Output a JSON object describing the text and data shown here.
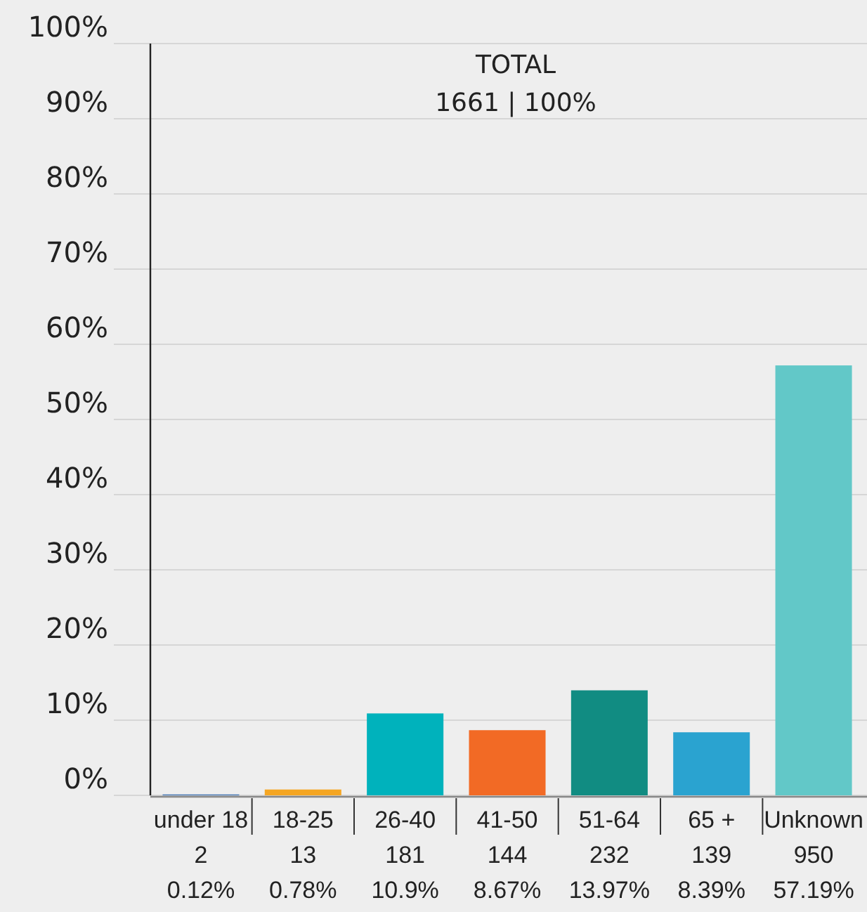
{
  "chart_data": {
    "type": "bar",
    "title": "TOTAL",
    "subtitle": "1661 | 100%",
    "categories": [
      "under 18\n2\n0.12%",
      "18-25\n13\n0.78%",
      "26-40\n181\n10.9%",
      "41-50\n144\n8.67%",
      "51-64\n232\n13.97%",
      "65 +\n139\n8.39%",
      "Unknown\n950\n57.19%"
    ],
    "values": [
      0.12,
      0.78,
      10.9,
      8.67,
      13.97,
      8.39,
      57.19
    ],
    "colors": [
      "#3a6fb0",
      "#f5a623",
      "#00b2bc",
      "#f26a25",
      "#118c82",
      "#2aa3d0",
      "#62c8c8"
    ],
    "ylim": [
      0,
      100
    ],
    "yticks": [
      {
        "value": 0,
        "label": "0%"
      },
      {
        "value": 10,
        "label": "10%"
      },
      {
        "value": 20,
        "label": "20%"
      },
      {
        "value": 30,
        "label": "30%"
      },
      {
        "value": 40,
        "label": "40%"
      },
      {
        "value": 50,
        "label": "50%"
      },
      {
        "value": 60,
        "label": "60%"
      },
      {
        "value": 70,
        "label": "70%"
      },
      {
        "value": 80,
        "label": "80%"
      },
      {
        "value": 90,
        "label": "90%"
      },
      {
        "value": 100,
        "label": "100%"
      }
    ],
    "grid": "y"
  }
}
